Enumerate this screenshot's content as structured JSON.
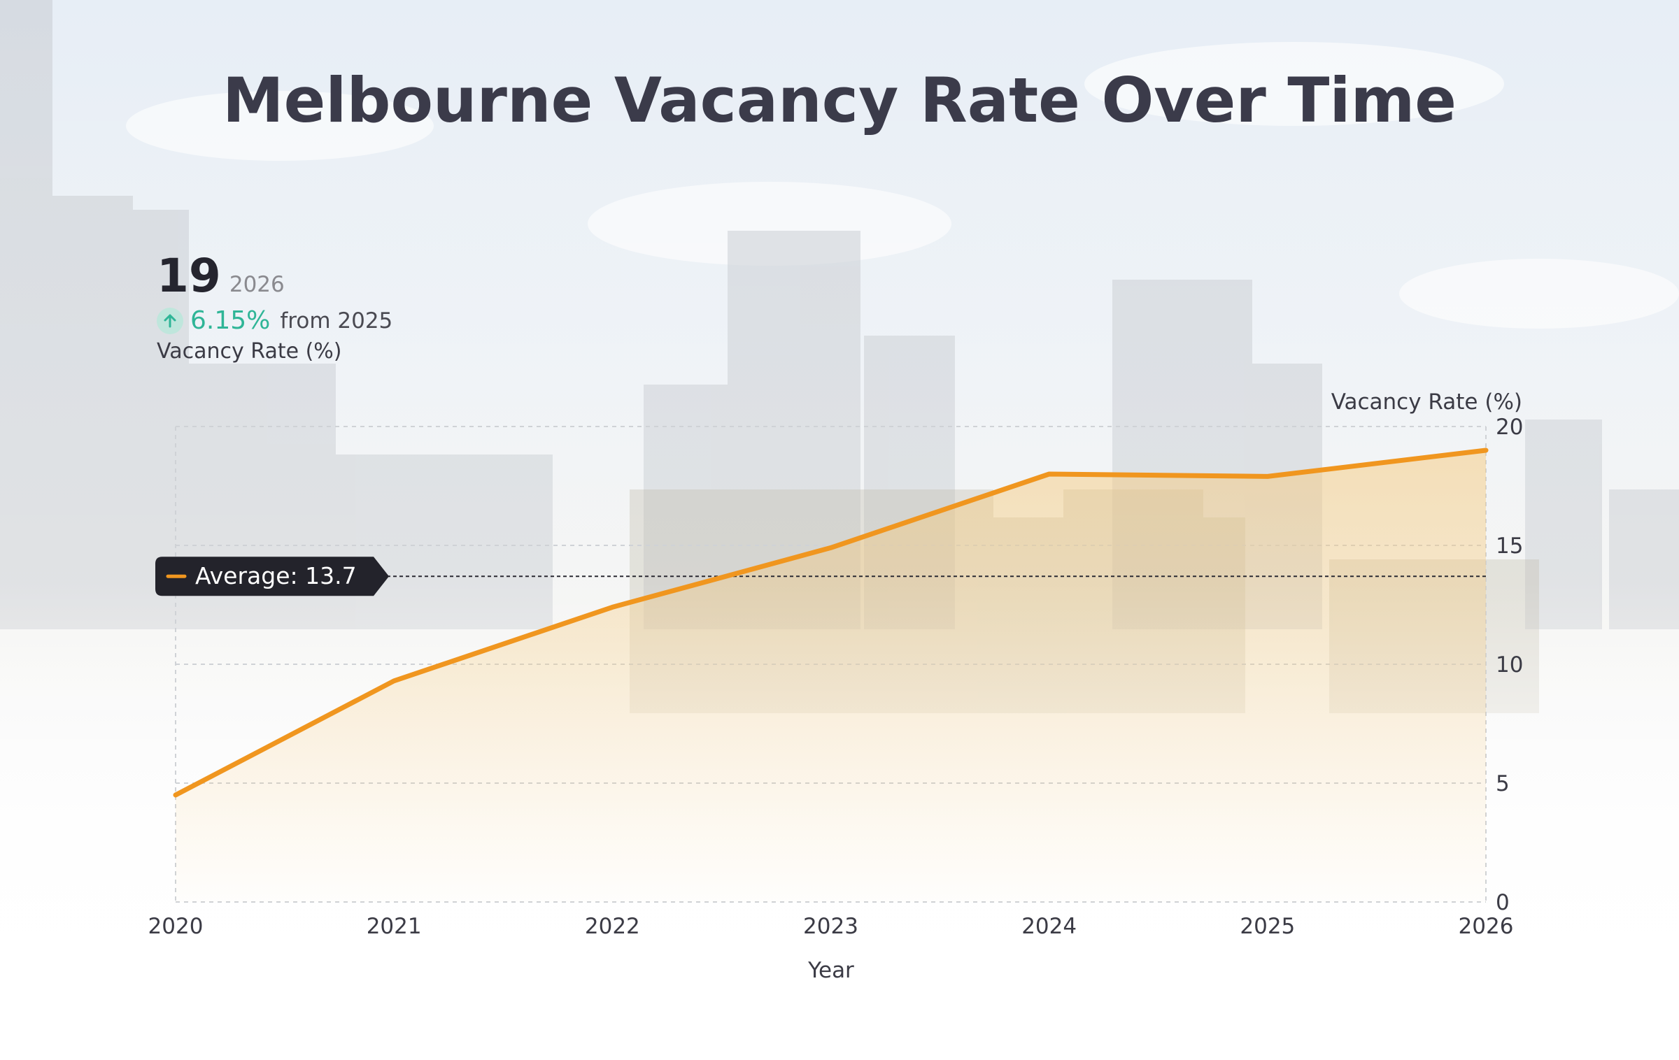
{
  "title": "Melbourne Vacancy Rate Over Time",
  "kpi": {
    "value": "19",
    "year": "2026",
    "change": "6.15%",
    "change_suffix": "from 2025",
    "label": "Vacancy Rate (%)",
    "icon": "arrow-up-icon"
  },
  "colors": {
    "line": "#f0961f",
    "area": "#f6c97a",
    "title": "#3b3b4a",
    "change": "#2fb597",
    "avg_badge_bg": "#23232b"
  },
  "chart_data": {
    "type": "area",
    "x": [
      2020,
      2021,
      2022,
      2023,
      2024,
      2025,
      2026
    ],
    "series": [
      {
        "values": [
          4.5,
          9.3,
          12.4,
          14.9,
          18.0,
          17.9,
          19.0
        ]
      }
    ],
    "xlabel": "Year",
    "ylabel": "Vacancy Rate (%)",
    "xlim": [
      2020,
      2026
    ],
    "ylim": [
      0,
      20
    ],
    "yticks": [
      0,
      5,
      10,
      15,
      20
    ],
    "xticks": [
      "2020",
      "2021",
      "2022",
      "2023",
      "2024",
      "2025",
      "2026"
    ],
    "y_axis_position": "right",
    "grid": "dashed",
    "average": {
      "value": 13.7,
      "label": "Average: 13.7"
    }
  }
}
